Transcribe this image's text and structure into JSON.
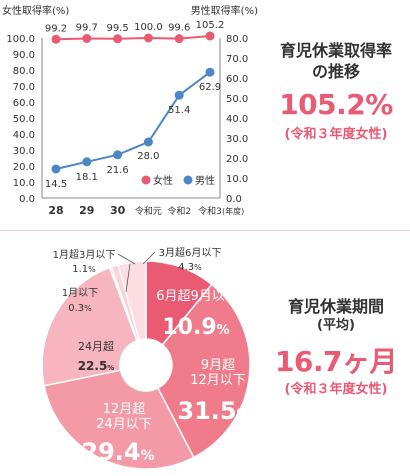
{
  "chart_data": [
    {
      "type": "line",
      "categories": [
        "28",
        "29",
        "30",
        "令和元",
        "令和2",
        "令和3"
      ],
      "x_unit": "(年度)",
      "ylabel_left": "女性取得率(%)",
      "ylabel_right": "男性取得率(%)",
      "y_left_ticks": [
        "100.0",
        "90.0",
        "80.0",
        "70.0",
        "60.0",
        "50.0",
        "40.0",
        "30.0",
        "20.0",
        "10.0",
        "0.0"
      ],
      "y_right_ticks": [
        "80.0",
        "70.0",
        "60.0",
        "50.0",
        "40.0",
        "30.0",
        "20.0",
        "10.0",
        "0.0"
      ],
      "ylim_left": [
        0,
        100
      ],
      "ylim_right": [
        0,
        80
      ],
      "series": [
        {
          "name": "女性",
          "axis": "left",
          "color": "#ea5a72",
          "values": [
            99.2,
            99.7,
            99.5,
            100.0,
            99.6,
            105.2
          ],
          "labels": [
            "99.2",
            "99.7",
            "99.5",
            "100.0",
            "99.6",
            "105.2"
          ]
        },
        {
          "name": "男性",
          "axis": "right",
          "color": "#4a86c8",
          "values": [
            14.5,
            18.1,
            21.6,
            28.0,
            51.4,
            62.9
          ],
          "labels": [
            "14.5",
            "18.1",
            "21.6",
            "28.0",
            "51.4",
            "62.9"
          ]
        }
      ]
    },
    {
      "type": "pie",
      "donut": true,
      "slices": [
        {
          "name_lines": [
            "6月超9月以下"
          ],
          "value": 10.9,
          "value_label": "10.9",
          "unit": "%",
          "color": "#ea5a72",
          "label_inside": true
        },
        {
          "name_lines": [
            "9月超",
            "12月以下"
          ],
          "value": 31.5,
          "value_label": "31.5",
          "unit": "%",
          "color": "#f07c8b",
          "label_inside": true
        },
        {
          "name_lines": [
            "12月超",
            "24月以下"
          ],
          "value": 29.4,
          "value_label": "29.4",
          "unit": "%",
          "color": "#f49aa6",
          "label_inside": true
        },
        {
          "name_lines": [
            "24月超"
          ],
          "value": 22.5,
          "value_label": "22.5",
          "unit": "%",
          "color": "#f7b6bf",
          "label_inside": true
        },
        {
          "name_lines": [
            "1月以下"
          ],
          "value": 0.3,
          "value_label": "0.3",
          "unit": "%",
          "color": "#f9c6cd",
          "label_inside": false
        },
        {
          "name_lines": [
            "1月超3月以下"
          ],
          "value": 1.1,
          "value_label": "1.1",
          "unit": "%",
          "color": "#fad2d8",
          "label_inside": false
        },
        {
          "name_lines": [
            "3月超6月以下"
          ],
          "value": 4.3,
          "value_label": "4.3",
          "unit": "%",
          "color": "#fcdde2",
          "label_inside": false
        }
      ]
    }
  ],
  "summary_top": {
    "title_line1": "育児休業取得率",
    "title_line2": "の推移",
    "value": "105.2%",
    "note": "(令和３年度女性)"
  },
  "summary_bottom": {
    "title_line1": "育児休業期間",
    "title_line2": "(平均)",
    "value": "16.7ヶ月",
    "note": "(令和３年度女性)"
  }
}
